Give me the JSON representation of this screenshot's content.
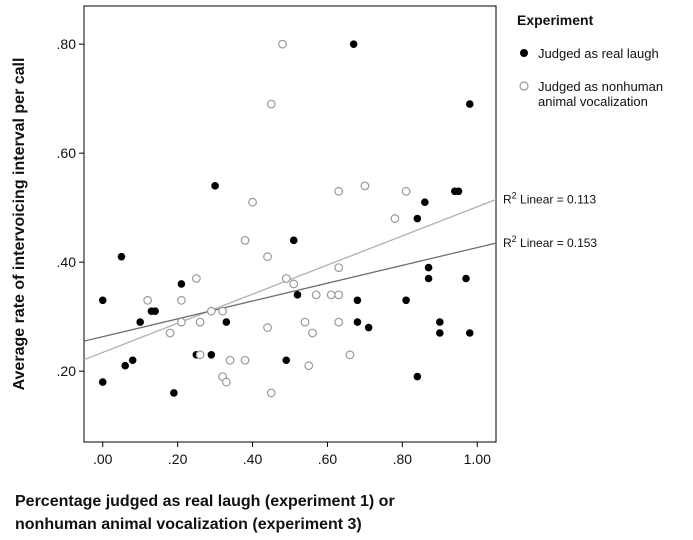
{
  "chart_data": {
    "type": "scatter",
    "xlabel_lines": [
      "Percentage judged as real laugh (experiment 1) or",
      "nonhuman animal vocalization (experiment 3)"
    ],
    "ylabel": "Average rate of intervoicing interval per call",
    "x_ticks": [
      ".00",
      ".20",
      ".40",
      ".60",
      ".80",
      "1.00"
    ],
    "x_tick_values": [
      0,
      0.2,
      0.4,
      0.6,
      0.8,
      1.0
    ],
    "y_ticks": [
      ".20",
      ".40",
      ".60",
      ".80"
    ],
    "y_tick_values": [
      0.2,
      0.4,
      0.6,
      0.8
    ],
    "xlim": [
      -0.05,
      1.05
    ],
    "ylim": [
      0.07,
      0.87
    ],
    "grid": false,
    "legend": {
      "title": "Experiment",
      "placement": "top-right outside",
      "items": [
        {
          "label_lines": [
            "Judged as real laugh"
          ],
          "style": "filled"
        },
        {
          "label_lines": [
            "Judged as nonhuman",
            "animal vocalization"
          ],
          "style": "hollow"
        }
      ]
    },
    "colors": {
      "filled": "#000000",
      "hollow": "#999999",
      "fit_light": "#b0b0b0",
      "fit_dark": "#707070"
    },
    "series": [
      {
        "name": "Judged as real laugh",
        "style": "filled",
        "points": [
          [
            0.0,
            0.33
          ],
          [
            0.0,
            0.18
          ],
          [
            0.05,
            0.41
          ],
          [
            0.06,
            0.21
          ],
          [
            0.08,
            0.22
          ],
          [
            0.1,
            0.29
          ],
          [
            0.13,
            0.31
          ],
          [
            0.14,
            0.31
          ],
          [
            0.19,
            0.16
          ],
          [
            0.21,
            0.36
          ],
          [
            0.25,
            0.23
          ],
          [
            0.29,
            0.23
          ],
          [
            0.3,
            0.54
          ],
          [
            0.33,
            0.29
          ],
          [
            0.49,
            0.22
          ],
          [
            0.51,
            0.44
          ],
          [
            0.52,
            0.34
          ],
          [
            0.67,
            0.8
          ],
          [
            0.68,
            0.33
          ],
          [
            0.68,
            0.29
          ],
          [
            0.71,
            0.28
          ],
          [
            0.81,
            0.33
          ],
          [
            0.84,
            0.48
          ],
          [
            0.84,
            0.19
          ],
          [
            0.86,
            0.51
          ],
          [
            0.87,
            0.39
          ],
          [
            0.87,
            0.37
          ],
          [
            0.9,
            0.29
          ],
          [
            0.9,
            0.27
          ],
          [
            0.94,
            0.53
          ],
          [
            0.95,
            0.53
          ],
          [
            0.97,
            0.37
          ],
          [
            0.98,
            0.69
          ],
          [
            0.98,
            0.27
          ]
        ]
      },
      {
        "name": "Judged as nonhuman animal vocalization",
        "style": "hollow",
        "points": [
          [
            0.12,
            0.33
          ],
          [
            0.18,
            0.27
          ],
          [
            0.21,
            0.33
          ],
          [
            0.21,
            0.29
          ],
          [
            0.25,
            0.37
          ],
          [
            0.26,
            0.29
          ],
          [
            0.26,
            0.23
          ],
          [
            0.29,
            0.31
          ],
          [
            0.32,
            0.31
          ],
          [
            0.32,
            0.19
          ],
          [
            0.33,
            0.18
          ],
          [
            0.34,
            0.22
          ],
          [
            0.38,
            0.44
          ],
          [
            0.38,
            0.22
          ],
          [
            0.4,
            0.51
          ],
          [
            0.44,
            0.41
          ],
          [
            0.44,
            0.28
          ],
          [
            0.45,
            0.69
          ],
          [
            0.45,
            0.16
          ],
          [
            0.48,
            0.8
          ],
          [
            0.49,
            0.37
          ],
          [
            0.51,
            0.36
          ],
          [
            0.54,
            0.29
          ],
          [
            0.55,
            0.21
          ],
          [
            0.56,
            0.27
          ],
          [
            0.57,
            0.34
          ],
          [
            0.61,
            0.34
          ],
          [
            0.63,
            0.53
          ],
          [
            0.63,
            0.39
          ],
          [
            0.63,
            0.34
          ],
          [
            0.63,
            0.29
          ],
          [
            0.66,
            0.23
          ],
          [
            0.7,
            0.54
          ],
          [
            0.78,
            0.48
          ],
          [
            0.81,
            0.53
          ]
        ]
      }
    ],
    "fit_lines": [
      {
        "label": "Linear = 0.113",
        "x": [
          -0.05,
          1.05
        ],
        "y": [
          0.221,
          0.515
        ],
        "style": "fit_light"
      },
      {
        "label": "Linear = 0.153",
        "x": [
          -0.05,
          1.05
        ],
        "y": [
          0.255,
          0.435
        ],
        "style": "fit_dark"
      }
    ]
  }
}
